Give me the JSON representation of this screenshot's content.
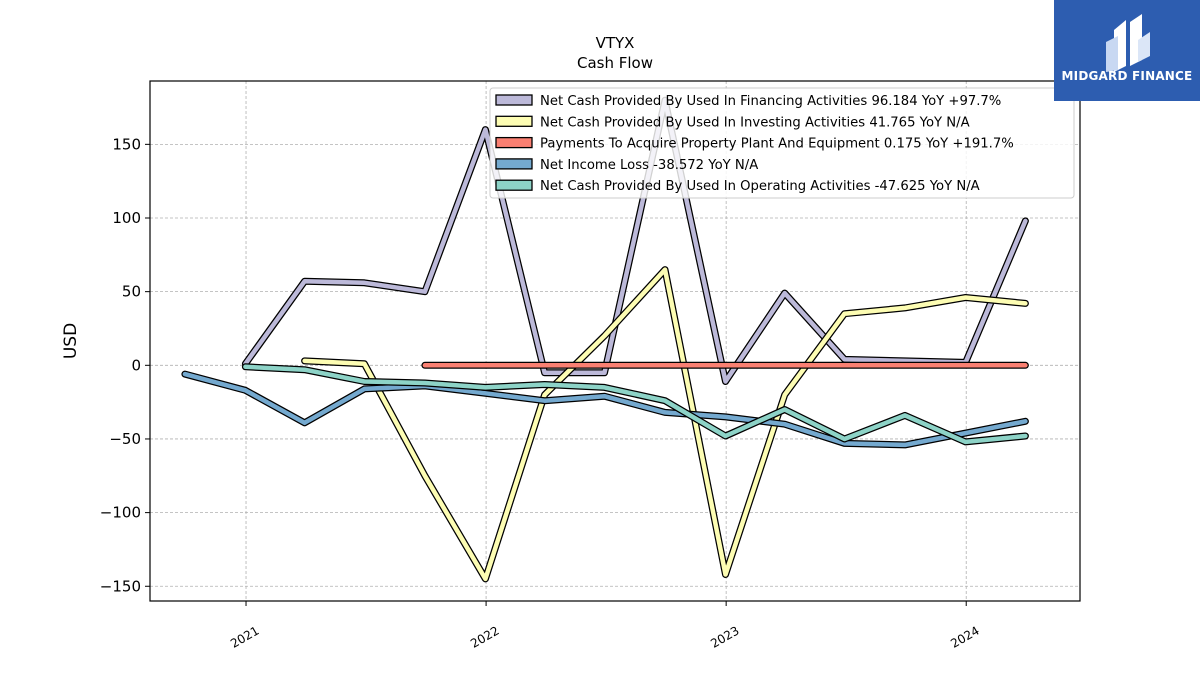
{
  "chart_data": {
    "type": "line",
    "title": "VTYX",
    "subtitle": "Cash Flow",
    "ylabel": "USD",
    "xlabel": "",
    "ylim": [
      -160,
      193
    ],
    "xlim": [
      "2020-08-08",
      "2024-06-22"
    ],
    "yticks": [
      {
        "value": 150,
        "label": "150"
      },
      {
        "value": 100,
        "label": "100"
      },
      {
        "value": 50,
        "label": "50"
      },
      {
        "value": 0,
        "label": "0"
      },
      {
        "value": -50,
        "label": "−50"
      },
      {
        "value": -100,
        "label": "−100"
      },
      {
        "value": -150,
        "label": "−150"
      }
    ],
    "xticks": [
      {
        "value": "2021-01-01",
        "label": "2021"
      },
      {
        "value": "2022-01-01",
        "label": "2022"
      },
      {
        "value": "2023-01-01",
        "label": "2023"
      },
      {
        "value": "2024-01-01",
        "label": "2024"
      }
    ],
    "grid": true,
    "legend_position": "top-right",
    "series": [
      {
        "name": "Net Cash Provided By Used In Financing Activities  96.184 YoY +97.7%",
        "color": "#bcb9d9",
        "points": [
          [
            "2020-12-31",
            1
          ],
          [
            "2021-03-31",
            57
          ],
          [
            "2021-06-30",
            56
          ],
          [
            "2021-09-30",
            50
          ],
          [
            "2021-12-31",
            160
          ],
          [
            "2022-03-31",
            -5
          ],
          [
            "2022-06-30",
            -5
          ],
          [
            "2022-09-30",
            180
          ],
          [
            "2022-12-31",
            -11
          ],
          [
            "2023-03-31",
            49
          ],
          [
            "2023-06-30",
            4
          ],
          [
            "2023-09-30",
            3
          ],
          [
            "2023-12-31",
            2
          ],
          [
            "2024-03-31",
            98
          ]
        ]
      },
      {
        "name": "Net Cash Provided By Used In Investing Activities  41.765 YoY N/A",
        "color": "#fdfdb3",
        "points": [
          [
            "2021-03-31",
            3
          ],
          [
            "2021-06-30",
            1
          ],
          [
            "2021-09-30",
            -75
          ],
          [
            "2021-12-31",
            -145
          ],
          [
            "2022-03-31",
            -20
          ],
          [
            "2022-06-30",
            20
          ],
          [
            "2022-09-30",
            65
          ],
          [
            "2022-12-31",
            -142
          ],
          [
            "2023-03-31",
            -20
          ],
          [
            "2023-06-30",
            35
          ],
          [
            "2023-09-30",
            39
          ],
          [
            "2023-12-31",
            46
          ],
          [
            "2024-03-31",
            42
          ]
        ]
      },
      {
        "name": "Payments To Acquire Property Plant And Equipment  0.175 YoY +191.7%",
        "color": "#fa8072",
        "points": [
          [
            "2021-09-30",
            0
          ],
          [
            "2021-12-31",
            0
          ],
          [
            "2022-03-31",
            0
          ],
          [
            "2022-06-30",
            0
          ],
          [
            "2022-09-30",
            0
          ],
          [
            "2022-12-31",
            0
          ],
          [
            "2023-03-31",
            0
          ],
          [
            "2023-06-30",
            0
          ],
          [
            "2023-09-30",
            0
          ],
          [
            "2023-12-31",
            0
          ],
          [
            "2024-03-31",
            0
          ]
        ]
      },
      {
        "name": "Net Income Loss  -38.572 YoY N/A",
        "color": "#74a9cf",
        "points": [
          [
            "2020-09-30",
            -6
          ],
          [
            "2020-12-31",
            -17
          ],
          [
            "2021-03-31",
            -39
          ],
          [
            "2021-06-30",
            -16
          ],
          [
            "2021-09-30",
            -14
          ],
          [
            "2021-12-31",
            -19
          ],
          [
            "2022-03-31",
            -24
          ],
          [
            "2022-06-30",
            -21
          ],
          [
            "2022-09-30",
            -32
          ],
          [
            "2022-12-31",
            -35
          ],
          [
            "2023-03-31",
            -40
          ],
          [
            "2023-06-30",
            -53
          ],
          [
            "2023-09-30",
            -54
          ],
          [
            "2023-12-31",
            -46
          ],
          [
            "2024-03-31",
            -38
          ]
        ]
      },
      {
        "name": "Net Cash Provided By Used In Operating Activities  -47.625 YoY N/A",
        "color": "#8dd3c7",
        "points": [
          [
            "2020-12-31",
            -1
          ],
          [
            "2021-03-31",
            -3
          ],
          [
            "2021-06-30",
            -11
          ],
          [
            "2021-09-30",
            -12
          ],
          [
            "2021-12-31",
            -15
          ],
          [
            "2022-03-31",
            -13
          ],
          [
            "2022-06-30",
            -15
          ],
          [
            "2022-09-30",
            -24
          ],
          [
            "2022-12-31",
            -48
          ],
          [
            "2023-03-31",
            -30
          ],
          [
            "2023-06-30",
            -50
          ],
          [
            "2023-09-30",
            -34
          ],
          [
            "2023-12-31",
            -52
          ],
          [
            "2024-03-31",
            -48
          ]
        ]
      }
    ]
  },
  "logo": {
    "text": "MIDGARD FINANCE",
    "background": "#2d5db0"
  }
}
